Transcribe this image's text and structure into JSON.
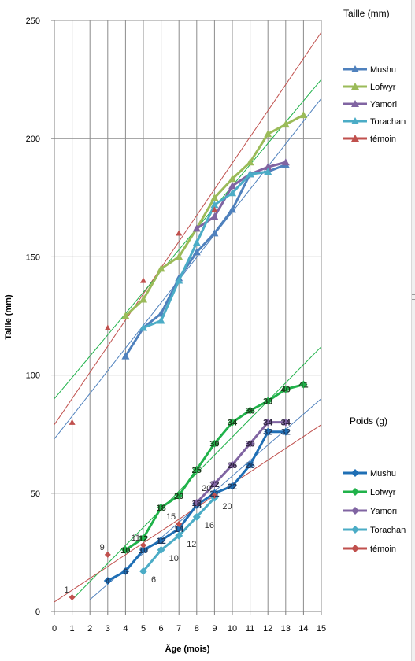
{
  "chart_data": {
    "type": "line",
    "xlabel": "Âge (mois)",
    "ylabel": "Taille (mm)",
    "xlim": [
      0,
      15
    ],
    "ylim": [
      0,
      250
    ],
    "x_ticks": [
      0,
      1,
      2,
      3,
      4,
      5,
      6,
      7,
      8,
      9,
      10,
      11,
      12,
      13,
      14,
      15
    ],
    "y_ticks": [
      0,
      50,
      100,
      150,
      200,
      250
    ],
    "grid": true,
    "legends": [
      {
        "title": "Taille (mm)",
        "placement": "right-top",
        "entries": [
          {
            "name": "Mushu",
            "color": "#4f81bd",
            "marker": "triangle"
          },
          {
            "name": "Lofwyr",
            "color": "#9bbb59",
            "marker": "triangle"
          },
          {
            "name": "Yamori",
            "color": "#8064a2",
            "marker": "triangle"
          },
          {
            "name": "Torachan",
            "color": "#4bacc6",
            "marker": "triangle"
          },
          {
            "name": "témoin",
            "color": "#c0504d",
            "marker": "triangle"
          }
        ]
      },
      {
        "title": "Poids (g)",
        "placement": "right-bottom",
        "entries": [
          {
            "name": "Mushu",
            "color": "#1f6fb5",
            "marker": "diamond"
          },
          {
            "name": "Lofwyr",
            "color": "#20b24a",
            "marker": "diamond"
          },
          {
            "name": "Yamori",
            "color": "#8064a2",
            "marker": "diamond"
          },
          {
            "name": "Torachan",
            "color": "#4bacc6",
            "marker": "diamond"
          },
          {
            "name": "témoin",
            "color": "#c0504d",
            "marker": "diamond"
          }
        ]
      }
    ],
    "taille_series": [
      {
        "name": "Mushu",
        "color": "#4f81bd",
        "marker": "triangle",
        "lineWidth": 3,
        "points": [
          [
            4,
            108
          ],
          [
            5,
            120
          ],
          [
            6,
            126
          ],
          [
            7,
            141
          ],
          [
            8,
            152
          ],
          [
            9,
            160
          ],
          [
            10,
            170
          ],
          [
            11,
            185
          ],
          [
            12,
            186
          ],
          [
            13,
            189
          ]
        ]
      },
      {
        "name": "Lofwyr",
        "color": "#9bbb59",
        "marker": "triangle",
        "lineWidth": 3,
        "points": [
          [
            4,
            125
          ],
          [
            5,
            132
          ],
          [
            6,
            145
          ],
          [
            7,
            150
          ],
          [
            8,
            162
          ],
          [
            9,
            175
          ],
          [
            10,
            183
          ],
          [
            11,
            190
          ],
          [
            12,
            202
          ],
          [
            13,
            206
          ],
          [
            14,
            210
          ]
        ]
      },
      {
        "name": "Yamori",
        "color": "#8064a2",
        "marker": "triangle",
        "lineWidth": 3,
        "points": [
          [
            8,
            162
          ],
          [
            9,
            167
          ],
          [
            10,
            180
          ],
          [
            11,
            185
          ],
          [
            12,
            188
          ],
          [
            13,
            190
          ]
        ]
      },
      {
        "name": "Torachan",
        "color": "#4bacc6",
        "marker": "triangle",
        "lineWidth": 3,
        "points": [
          [
            5,
            120
          ],
          [
            6,
            123
          ],
          [
            7,
            140
          ],
          [
            8,
            156
          ],
          [
            9,
            172
          ],
          [
            10,
            177
          ],
          [
            11,
            185
          ],
          [
            12,
            186
          ]
        ]
      },
      {
        "name": "témoin",
        "color": "#c0504d",
        "marker": "triangle",
        "lineWidth": 0,
        "points": [
          [
            1,
            80
          ],
          [
            3,
            120
          ],
          [
            5,
            140
          ],
          [
            7,
            160
          ],
          [
            9,
            170
          ]
        ]
      }
    ],
    "poids_series": [
      {
        "name": "Mushu",
        "color": "#1f6fb5",
        "marker": "diamond",
        "lineWidth": 3,
        "labelColor": "#1f3a60",
        "labelPos": "on",
        "points": [
          [
            3,
            13,
            "4"
          ],
          [
            4,
            17,
            "6"
          ],
          [
            5,
            26,
            "10"
          ],
          [
            6,
            30,
            "12"
          ],
          [
            7,
            35,
            "14"
          ],
          [
            8,
            45,
            "18"
          ],
          [
            9,
            50,
            "21"
          ],
          [
            10,
            53,
            "22"
          ],
          [
            11,
            62,
            "26"
          ],
          [
            12,
            76,
            "32"
          ],
          [
            13,
            76,
            "32"
          ]
        ]
      },
      {
        "name": "Lofwyr",
        "color": "#20b24a",
        "marker": "diamond",
        "lineWidth": 3,
        "labelColor": "#1a3a1a",
        "labelPos": "on",
        "points": [
          [
            4,
            26,
            "10"
          ],
          [
            5,
            31,
            "12"
          ],
          [
            6,
            44,
            "18"
          ],
          [
            7,
            49,
            "20"
          ],
          [
            8,
            60,
            "25"
          ],
          [
            9,
            71,
            "30"
          ],
          [
            10,
            80,
            "34"
          ],
          [
            11,
            85,
            "36"
          ],
          [
            12,
            89,
            "38"
          ],
          [
            13,
            94,
            "40"
          ],
          [
            14,
            96,
            "41"
          ]
        ]
      },
      {
        "name": "Yamori",
        "color": "#8064a2",
        "marker": "diamond",
        "lineWidth": 3,
        "labelColor": "#2e2340",
        "labelPos": "on",
        "points": [
          [
            8,
            46,
            "18"
          ],
          [
            9,
            54,
            "22"
          ],
          [
            10,
            62,
            "26"
          ],
          [
            11,
            71,
            "30"
          ],
          [
            12,
            80,
            "34"
          ],
          [
            13,
            80,
            "34"
          ]
        ]
      },
      {
        "name": "Torachan",
        "color": "#4bacc6",
        "marker": "diamond",
        "lineWidth": 3,
        "labelColor": "#333333",
        "labelPos": "right",
        "points": [
          [
            5,
            17,
            "6"
          ],
          [
            6,
            26,
            "10"
          ],
          [
            7,
            32,
            "12"
          ],
          [
            8,
            40,
            "16"
          ],
          [
            9,
            48,
            "20"
          ]
        ]
      },
      {
        "name": "témoin",
        "color": "#c0504d",
        "marker": "diamond",
        "lineWidth": 0,
        "labelColor": "#333333",
        "labelPos": "above",
        "points": [
          [
            1,
            6,
            "1"
          ],
          [
            3,
            24,
            "9"
          ],
          [
            5,
            28,
            "11"
          ],
          [
            7,
            37,
            "15"
          ],
          [
            9,
            49,
            "20"
          ]
        ]
      }
    ],
    "trendlines": [
      {
        "color": "#c0504d",
        "from": [
          0,
          79
        ],
        "to": [
          15,
          245
        ]
      },
      {
        "color": "#20b24a",
        "from": [
          0,
          90
        ],
        "to": [
          15,
          225
        ]
      },
      {
        "color": "#4f81bd",
        "from": [
          0,
          73
        ],
        "to": [
          15,
          217
        ]
      },
      {
        "color": "#20b24a",
        "from": [
          1,
          5
        ],
        "to": [
          15,
          112
        ]
      },
      {
        "color": "#4f81bd",
        "from": [
          2,
          5
        ],
        "to": [
          15,
          90
        ]
      },
      {
        "color": "#c0504d",
        "from": [
          0,
          4
        ],
        "to": [
          15,
          79
        ]
      }
    ]
  }
}
